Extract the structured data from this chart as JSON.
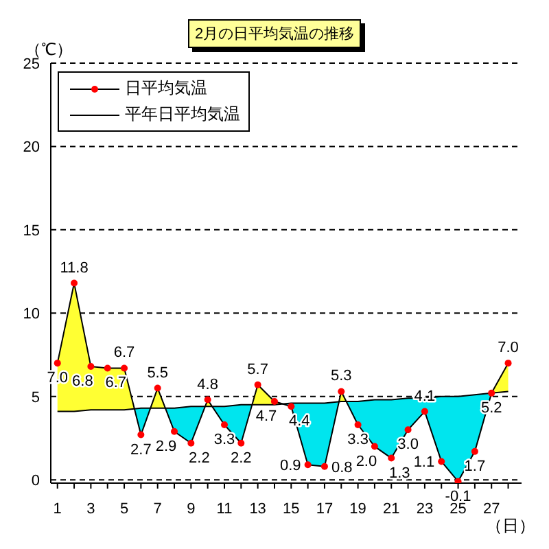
{
  "chart_data": {
    "type": "line",
    "title": "2月の日平均気温の推移",
    "xlabel": "（日）",
    "ylabel": "（℃）",
    "x": [
      1,
      2,
      3,
      4,
      5,
      6,
      7,
      8,
      9,
      10,
      11,
      12,
      13,
      14,
      15,
      16,
      17,
      18,
      19,
      20,
      21,
      22,
      23,
      24,
      25,
      26,
      27,
      28
    ],
    "series": [
      {
        "name": "日平均気温",
        "color": "#ff0000",
        "marker": "circle",
        "values": [
          7.0,
          11.8,
          6.8,
          6.7,
          6.7,
          2.7,
          5.5,
          2.9,
          2.2,
          4.8,
          3.3,
          2.2,
          5.7,
          4.7,
          4.4,
          0.9,
          0.8,
          5.3,
          3.3,
          2.0,
          1.3,
          3.0,
          4.1,
          1.1,
          -0.1,
          1.7,
          5.2,
          7.0
        ],
        "value_labels": [
          "7.0",
          "11.8",
          "6.8",
          "6.7",
          "6.7",
          "2.7",
          "5.5",
          "2.9",
          "2.2",
          "4.8",
          "3.3",
          "2.2",
          "5.7",
          "4.7",
          "4.4",
          "0.9",
          "0.8",
          "5.3",
          "3.3",
          "2.0",
          "1.3",
          "3.0",
          "4.1",
          "1.1",
          "-0.1",
          "1.7",
          "5.2",
          "7.0"
        ]
      },
      {
        "name": "平年日平均気温",
        "color": "#000000",
        "marker": "none",
        "values": [
          4.1,
          4.1,
          4.2,
          4.2,
          4.2,
          4.3,
          4.3,
          4.3,
          4.4,
          4.4,
          4.4,
          4.5,
          4.5,
          4.5,
          4.6,
          4.6,
          4.6,
          4.7,
          4.7,
          4.8,
          4.8,
          4.9,
          4.9,
          5.0,
          5.0,
          5.1,
          5.2,
          5.3
        ]
      }
    ],
    "xlim": [
      0.6,
      28.8
    ],
    "xticks": [
      1,
      {
        "value": 2,
        "label": null
      },
      3,
      {
        "value": 4,
        "label": null
      },
      5,
      {
        "value": 6,
        "label": null
      },
      7,
      {
        "value": 8,
        "label": null
      },
      9,
      {
        "value": 10,
        "label": null
      },
      11,
      {
        "value": 12,
        "label": null
      },
      13,
      {
        "value": 14,
        "label": null
      },
      15,
      {
        "value": 16,
        "label": null
      },
      17,
      {
        "value": 18,
        "label": null
      },
      19,
      {
        "value": 20,
        "label": null
      },
      21,
      {
        "value": 22,
        "label": null
      },
      23,
      {
        "value": 24,
        "label": null
      },
      25,
      {
        "value": 26,
        "label": null
      },
      27,
      {
        "value": 28,
        "label": null
      }
    ],
    "ylim": [
      -0.2,
      25
    ],
    "yticks": [
      0,
      5,
      10,
      15,
      20,
      25
    ],
    "grid": "y",
    "legend": "top left"
  }
}
